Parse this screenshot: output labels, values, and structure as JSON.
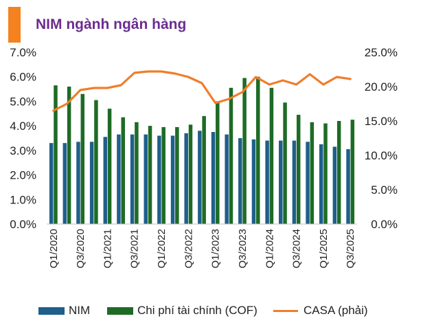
{
  "header": {
    "title": "NIM ngành ngân hàng"
  },
  "colors": {
    "accent": "#f5821f",
    "title": "#6a2c91",
    "nim": "#1f5f8b",
    "cof": "#1e6b26",
    "casa": "#f07d2a"
  },
  "chart_data": {
    "type": "bar",
    "title": "NIM ngành ngân hàng",
    "categories": [
      "Q1/2020",
      "Q2/2020",
      "Q3/2020",
      "Q4/2020",
      "Q1/2021",
      "Q2/2021",
      "Q3/2021",
      "Q4/2021",
      "Q1/2022",
      "Q2/2022",
      "Q3/2022",
      "Q4/2022",
      "Q1/2023",
      "Q2/2023",
      "Q3/2023",
      "Q4/2023",
      "Q1/2024",
      "Q2/2024",
      "Q3/2024",
      "Q4/2024",
      "Q1/2025",
      "Q2/2025",
      "Q3/2025"
    ],
    "x_tick_labels": [
      "Q1/2020",
      "Q3/2020",
      "Q1/2021",
      "Q3/2021",
      "Q1/2022",
      "Q3/2022",
      "Q1/2023",
      "Q3/2023",
      "Q1/2024",
      "Q3/2024",
      "Q1/2025",
      "Q3/2025"
    ],
    "series": [
      {
        "name": "NIM",
        "type": "bar",
        "axis": "left",
        "values": [
          3.3,
          3.3,
          3.35,
          3.35,
          3.55,
          3.65,
          3.65,
          3.65,
          3.6,
          3.6,
          3.7,
          3.8,
          3.75,
          3.65,
          3.5,
          3.45,
          3.4,
          3.4,
          3.4,
          3.35,
          3.25,
          3.15,
          3.05
        ]
      },
      {
        "name": "Chi phí tài chính (COF)",
        "type": "bar",
        "axis": "left",
        "values": [
          5.65,
          5.6,
          5.3,
          5.05,
          4.7,
          4.35,
          4.15,
          4.0,
          3.95,
          3.95,
          4.05,
          4.4,
          5.0,
          5.55,
          5.95,
          6.0,
          5.55,
          4.95,
          4.45,
          4.15,
          4.1,
          4.2,
          4.25
        ]
      },
      {
        "name": "CASA (phải)",
        "type": "line",
        "axis": "right",
        "values": [
          16.5,
          17.5,
          19.5,
          19.8,
          19.8,
          20.2,
          22.0,
          22.2,
          22.2,
          21.9,
          21.4,
          20.5,
          17.6,
          18.2,
          19.2,
          21.4,
          20.3,
          20.9,
          20.3,
          21.8,
          20.3,
          21.4,
          21.1
        ]
      }
    ],
    "y_left": {
      "min": 0,
      "max": 7,
      "ticks": [
        "0.0%",
        "1.0%",
        "2.0%",
        "3.0%",
        "4.0%",
        "5.0%",
        "6.0%",
        "7.0%"
      ]
    },
    "y_right": {
      "min": 0,
      "max": 25,
      "ticks": [
        "0.0%",
        "5.0%",
        "10.0%",
        "15.0%",
        "20.0%",
        "25.0%"
      ]
    },
    "grid": false,
    "legend_position": "bottom"
  }
}
